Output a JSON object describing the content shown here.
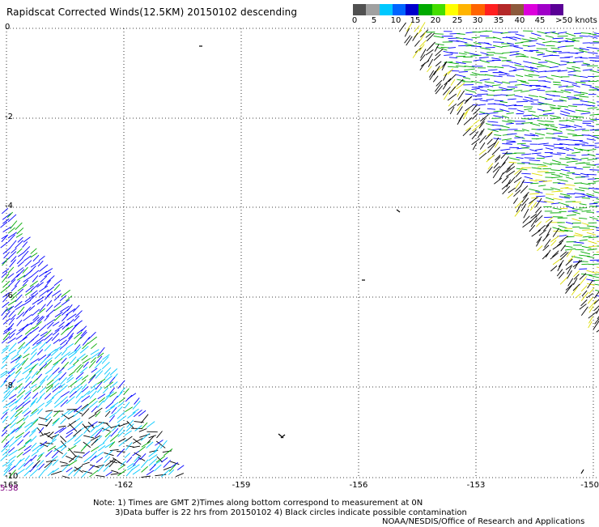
{
  "title": "Rapidscat Corrected Winds(12.5KM) 20150102 descending",
  "colorbar": {
    "colors": [
      "#505050",
      "#a0a0a0",
      "#00c8ff",
      "#0064ff",
      "#0000cc",
      "#00aa00",
      "#44dd00",
      "#ffff00",
      "#ffb400",
      "#ff6400",
      "#ff2020",
      "#b42828",
      "#8c5a3c",
      "#dc00dc",
      "#a000c8",
      "#5a0096"
    ],
    "labels": [
      "0",
      "5",
      "10",
      "15",
      "20",
      "25",
      "30",
      "35",
      "40",
      "45",
      ">50 knots"
    ]
  },
  "axes": {
    "lat_labels": [
      "0",
      "-2",
      "-4",
      "-6",
      "-8",
      "-10"
    ],
    "lon_labels": [
      "-165",
      "-162",
      "-159",
      "-156",
      "-153",
      "-150"
    ]
  },
  "time_label": "5:38",
  "notes": {
    "line1": "Note: 1) Times are GMT 2)Times along bottom correspond to measurement at 0N",
    "line2": "3)Data buffer is 22 hrs from 20150102 4) Black circles indicate possible contamination",
    "credit": "NOAA/NESDIS/Office of Research and Applications"
  },
  "legend_wind_colors": {
    "black": "#000000",
    "cyan": "#00c8ff",
    "blue": "#0000ff",
    "green": "#00aa00",
    "yellow": "#dddd00"
  }
}
